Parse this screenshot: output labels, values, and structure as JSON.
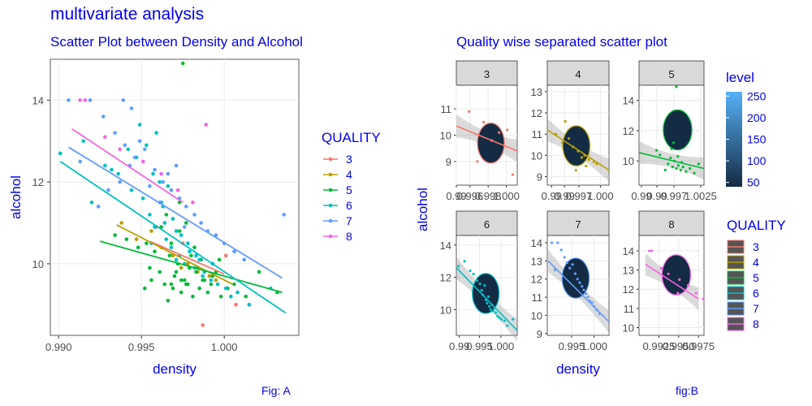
{
  "main_title": "multivariate analysis",
  "figure_captions": [
    "Fig: A",
    "fig:B"
  ],
  "colors": {
    "q3": "#f8766d",
    "q4": "#b79f00",
    "q5": "#00ba38",
    "q6": "#00bfc4",
    "q7": "#619cff",
    "q8": "#f564e3",
    "text": "#0000ee"
  },
  "chart_data": [
    {
      "type": "scatter",
      "title": "Scatter Plot between Density and Alcohol",
      "xlabel": "density",
      "ylabel": "alcohol",
      "xlim": [
        0.9895,
        1.0045
      ],
      "ylim": [
        8.25,
        15.0
      ],
      "xticks": [
        "0.990",
        "0.995",
        "1.000"
      ],
      "xtick_values": [
        0.99,
        0.995,
        1.0
      ],
      "yticks": [
        "10",
        "12",
        "14"
      ],
      "ytick_values": [
        10,
        12,
        14
      ],
      "grid": true,
      "legend": {
        "title": "QUALITY",
        "placement": "right",
        "entries": [
          "3",
          "4",
          "5",
          "6",
          "7",
          "8"
        ]
      },
      "trend_lines": [
        {
          "name": "3",
          "x": [
            0.9955,
            1.0
          ],
          "y": [
            10.55,
            9.75
          ]
        },
        {
          "name": "4",
          "x": [
            0.9935,
            1.0005
          ],
          "y": [
            10.95,
            9.5
          ]
        },
        {
          "name": "5",
          "x": [
            0.9925,
            1.0035
          ],
          "y": [
            10.55,
            9.3
          ]
        },
        {
          "name": "6",
          "x": [
            0.9901,
            1.0037
          ],
          "y": [
            12.5,
            8.8
          ]
        },
        {
          "name": "7",
          "x": [
            0.9906,
            1.0035
          ],
          "y": [
            12.85,
            9.65
          ]
        },
        {
          "name": "8",
          "x": [
            0.9908,
            0.9975
          ],
          "y": [
            13.3,
            11.5
          ]
        }
      ],
      "series": [
        {
          "name": "3",
          "x": [
            0.9959,
            0.9987,
            1.0007,
            0.9975,
            1.0001
          ],
          "y": [
            10.9,
            8.5,
            9.0,
            10.5,
            10.2
          ]
        },
        {
          "name": "4",
          "x": [
            0.9938,
            0.9947,
            0.9962,
            0.9969,
            0.9978,
            0.9984,
            0.9991,
            0.9995,
            0.9956,
            0.9974
          ],
          "y": [
            11.0,
            10.6,
            10.4,
            10.2,
            10.0,
            9.8,
            9.7,
            9.6,
            10.8,
            9.9
          ]
        },
        {
          "name": "5",
          "x": [
            0.9952,
            0.9956,
            0.9961,
            0.9964,
            0.9967,
            0.9969,
            0.9971,
            0.9972,
            0.9974,
            0.9976,
            0.9978,
            0.9981,
            0.9983,
            0.9985,
            0.9987,
            0.999,
            0.9992,
            0.9995,
            0.9998,
            1.0002,
            0.9968,
            0.9973,
            0.9977,
            0.9982,
            0.9965,
            0.9962,
            0.9958,
            0.9979,
            0.9986,
            0.9993,
            1.0006,
            1.0013,
            1.0021,
            0.9948,
            0.9941,
            0.9975,
            0.9966,
            0.997,
            0.998,
            0.9984,
            0.9955,
            0.9988,
            0.9997,
            0.9968,
            0.9974,
            0.9973,
            0.9977,
            0.9934,
            0.9953,
            1.0032
          ],
          "y": [
            9.4,
            9.6,
            9.8,
            9.5,
            10.2,
            9.4,
            9.8,
            10.0,
            9.3,
            9.6,
            9.5,
            9.2,
            9.8,
            9.4,
            9.6,
            9.3,
            9.5,
            9.8,
            9.2,
            9.4,
            10.5,
            10.8,
            11.0,
            10.4,
            11.2,
            10.9,
            10.3,
            9.9,
            10.1,
            9.7,
            9.5,
            9.2,
            9.8,
            10.4,
            10.6,
            14.9,
            9.1,
            9.7,
            10.2,
            9.9,
            9.9,
            9.6,
            10.1,
            9.5,
            9.6,
            11.5,
            9.5,
            10.7,
            10.5,
            9.3
          ]
        },
        {
          "name": "6",
          "x": [
            0.9901,
            0.9915,
            0.9928,
            0.9936,
            0.9944,
            0.9951,
            0.9955,
            0.9958,
            0.9962,
            0.9965,
            0.9968,
            0.9971,
            0.9973,
            0.9976,
            0.9979,
            0.9982,
            0.9985,
            0.9988,
            0.9992,
            0.9996,
            1.0001,
            1.0008,
            1.0015,
            0.9947,
            0.9953,
            0.9961,
            0.9966,
            0.9969,
            0.9974,
            0.9978,
            0.9983,
            0.9959,
            0.9963,
            0.9957,
            0.9949,
            0.9942,
            0.9932,
            0.992,
            0.9987,
            0.9993,
            1.0004,
            1.0028,
            0.9956,
            0.9964,
            0.9971
          ],
          "y": [
            12.7,
            13.0,
            12.4,
            12.2,
            11.8,
            11.6,
            11.2,
            10.9,
            11.5,
            10.6,
            10.4,
            10.8,
            10.2,
            10.0,
            10.3,
            9.9,
            10.1,
            9.8,
            9.6,
            9.5,
            9.4,
            9.3,
            9.0,
            12.6,
            12.9,
            12.0,
            11.9,
            11.1,
            10.7,
            10.5,
            10.2,
            13.2,
            11.4,
            12.2,
            13.4,
            12.8,
            12.3,
            11.5,
            9.7,
            10.0,
            9.2,
            9.4,
            10.5,
            11.0,
            10.1
          ]
        },
        {
          "name": "7",
          "x": [
            0.9906,
            0.9913,
            0.9919,
            0.9927,
            0.9934,
            0.994,
            0.9946,
            0.9952,
            0.9958,
            0.9963,
            0.9968,
            0.9973,
            0.9977,
            0.9982,
            0.9986,
            0.999,
            0.9995,
            1.0,
            1.0006,
            1.0012,
            0.9943,
            0.9949,
            0.9955,
            0.9961,
            0.9966,
            0.9971,
            0.9976,
            0.993,
            0.9924,
            0.9937,
            1.0036,
            0.9939,
            0.9944
          ],
          "y": [
            14.0,
            12.5,
            14.0,
            13.6,
            13.2,
            12.9,
            12.6,
            12.8,
            12.3,
            12.0,
            11.8,
            11.6,
            11.4,
            11.2,
            11.0,
            10.8,
            10.7,
            10.5,
            10.3,
            10.1,
            12.4,
            13.0,
            11.9,
            11.5,
            12.2,
            12.4,
            10.9,
            11.8,
            11.4,
            12.0,
            11.2,
            14.0,
            13.8
          ]
        },
        {
          "name": "8",
          "x": [
            0.9913,
            0.9916,
            0.9928,
            0.9937,
            0.9951,
            0.9962,
            0.9972,
            0.9981,
            0.9989
          ],
          "y": [
            14.0,
            14.0,
            13.1,
            12.8,
            12.5,
            12.2,
            11.8,
            11.5,
            13.4
          ]
        }
      ]
    },
    {
      "type": "scatter",
      "title": "Quality wise separated scatter plot",
      "xlabel": "density",
      "ylabel": "alcohol",
      "grid": true,
      "facets": [
        {
          "label": "3",
          "xlim": [
            0.9945,
            1.0012
          ],
          "ylim": [
            8.1,
            11.9
          ],
          "xticks": [
            "0.99",
            "0.996",
            "0.998",
            "1.000"
          ],
          "xtick_values": [
            0.9945,
            0.996,
            0.998,
            1.0
          ],
          "yticks": [
            "9",
            "10",
            "11"
          ],
          "ytick_values": [
            9,
            10,
            11
          ],
          "x": [
            0.9959,
            0.9968,
            0.9975,
            0.9984,
            0.9992,
            1.0001,
            1.0007
          ],
          "y": [
            10.9,
            9.0,
            10.5,
            9.8,
            10.1,
            10.2,
            8.5
          ],
          "trend": {
            "x": [
              0.9945,
              1.0012
            ],
            "y": [
              10.35,
              9.4
            ]
          }
        },
        {
          "label": "4",
          "xlim": [
            0.9926,
            1.0012
          ],
          "ylim": [
            8.6,
            13.3
          ],
          "xticks": [
            "0.99",
            "0.99",
            "0.997",
            "1.000"
          ],
          "xtick_values": [
            0.9932,
            0.995,
            0.997,
            1.0
          ],
          "yticks": [
            "9",
            "10",
            "11",
            "12",
            "13"
          ],
          "ytick_values": [
            9,
            10,
            11,
            12,
            13
          ],
          "x": [
            0.9938,
            0.9947,
            0.9956,
            0.9962,
            0.9969,
            0.9974,
            0.9978,
            0.9984,
            0.9991,
            0.9995,
            0.9951,
            0.9966,
            0.998
          ],
          "y": [
            11.0,
            10.6,
            10.8,
            10.4,
            10.2,
            9.9,
            10.0,
            9.8,
            9.7,
            9.6,
            11.6,
            9.3,
            9.5
          ],
          "trend": {
            "x": [
              0.9926,
              1.0012
            ],
            "y": [
              11.2,
              9.3
            ]
          }
        },
        {
          "label": "5",
          "xlim": [
            0.9898,
            1.0032
          ],
          "ylim": [
            8.4,
            15.0
          ],
          "xticks": [
            "0.99",
            "0.99",
            "0.997",
            "1.0025"
          ],
          "xtick_values": [
            0.9903,
            0.9935,
            0.997,
            1.0025
          ],
          "yticks": [
            "10",
            "12",
            "14"
          ],
          "ytick_values": [
            10,
            12,
            14
          ],
          "x": [
            0.9952,
            0.9958,
            0.9963,
            0.9967,
            0.9971,
            0.9975,
            0.9979,
            0.9984,
            0.9989,
            0.9995,
            1.0003,
            1.0012,
            1.0021,
            0.9941,
            0.9934,
            0.9975,
            0.9969,
            0.9965,
            0.9978,
            0.9986
          ],
          "y": [
            9.4,
            9.8,
            10.2,
            9.6,
            10.0,
            9.5,
            9.7,
            9.4,
            9.6,
            9.3,
            9.5,
            9.2,
            9.8,
            10.4,
            10.7,
            14.9,
            11.2,
            10.8,
            10.3,
            9.9
          ],
          "trend": {
            "x": [
              0.9898,
              1.0032
            ],
            "y": [
              10.55,
              9.5
            ]
          }
        },
        {
          "label": "6",
          "xlim": [
            0.9896,
            1.0038
          ],
          "ylim": [
            8.4,
            14.6
          ],
          "xticks": [
            "0.99",
            "0.995",
            "1.000"
          ],
          "xtick_values": [
            0.9903,
            0.995,
            1.0
          ],
          "yticks": [
            "10",
            "12",
            "14"
          ],
          "ytick_values": [
            10,
            12,
            14
          ],
          "x": [
            0.9901,
            0.9915,
            0.9928,
            0.9936,
            0.9944,
            0.9951,
            0.9955,
            0.9958,
            0.9962,
            0.9965,
            0.9968,
            0.9971,
            0.9973,
            0.9976,
            0.9979,
            0.9982,
            0.9985,
            0.9988,
            0.9992,
            0.9996,
            1.0001,
            1.0008,
            1.0015,
            1.0028
          ],
          "y": [
            12.7,
            13.0,
            12.4,
            12.2,
            11.8,
            11.6,
            11.2,
            10.9,
            11.5,
            10.6,
            10.4,
            10.8,
            10.2,
            10.0,
            10.3,
            9.9,
            10.1,
            9.8,
            9.6,
            9.5,
            9.4,
            9.3,
            9.0,
            9.4
          ],
          "trend": {
            "x": [
              0.9896,
              1.0038
            ],
            "y": [
              12.6,
              8.7
            ]
          }
        },
        {
          "label": "7",
          "xlim": [
            0.9896,
            1.0033
          ],
          "ylim": [
            8.9,
            14.4
          ],
          "xticks": [
            "0.995",
            "1.000"
          ],
          "xtick_values": [
            0.995,
            1.0
          ],
          "yticks": [
            "9",
            "10",
            "11",
            "12",
            "13",
            "14"
          ],
          "ytick_values": [
            9,
            10,
            11,
            12,
            13,
            14
          ],
          "x": [
            0.9906,
            0.9913,
            0.9919,
            0.9927,
            0.9934,
            0.994,
            0.9946,
            0.9952,
            0.9958,
            0.9963,
            0.9968,
            0.9973,
            0.9977,
            0.9982,
            0.9986,
            0.999,
            0.9995,
            1.0,
            1.0006,
            1.0012
          ],
          "y": [
            14.0,
            12.5,
            14.0,
            13.6,
            13.2,
            12.9,
            12.6,
            12.8,
            12.3,
            12.0,
            11.8,
            11.6,
            11.4,
            11.2,
            11.0,
            10.8,
            10.7,
            10.5,
            10.3,
            10.1
          ],
          "trend": {
            "x": [
              0.9898,
              1.0033
            ],
            "y": [
              13.0,
              9.65
            ]
          }
        },
        {
          "label": "8",
          "xlim": [
            0.99,
            0.9982
          ],
          "ylim": [
            9.6,
            14.8
          ],
          "xticks": [
            "0.9925",
            "0.9950",
            "0.9975"
          ],
          "xtick_values": [
            0.9925,
            0.995,
            0.9975
          ],
          "yticks": [
            "10",
            "11",
            "12",
            "13",
            "14"
          ],
          "ytick_values": [
            10,
            11,
            12,
            13,
            14
          ],
          "x": [
            0.9913,
            0.9916,
            0.9928,
            0.9937,
            0.9951,
            0.9962,
            0.9972,
            0.9981,
            0.9949
          ],
          "y": [
            14.0,
            14.0,
            13.1,
            12.8,
            12.5,
            12.2,
            11.8,
            11.5,
            11.8
          ],
          "trend": {
            "x": [
              0.9908,
              0.9975
            ],
            "y": [
              13.3,
              11.5
            ]
          }
        }
      ],
      "legends": [
        {
          "title": "level",
          "type": "colorbar",
          "ticks": [
            "250",
            "200",
            "150",
            "100",
            "50"
          ],
          "tick_values": [
            250,
            200,
            150,
            100,
            50
          ],
          "range": [
            40,
            260
          ],
          "low_color": "#132b43",
          "high_color": "#56b1f7"
        },
        {
          "title": "QUALITY",
          "type": "categorical",
          "entries": [
            "3",
            "4",
            "5",
            "6",
            "7",
            "8"
          ]
        }
      ]
    }
  ]
}
